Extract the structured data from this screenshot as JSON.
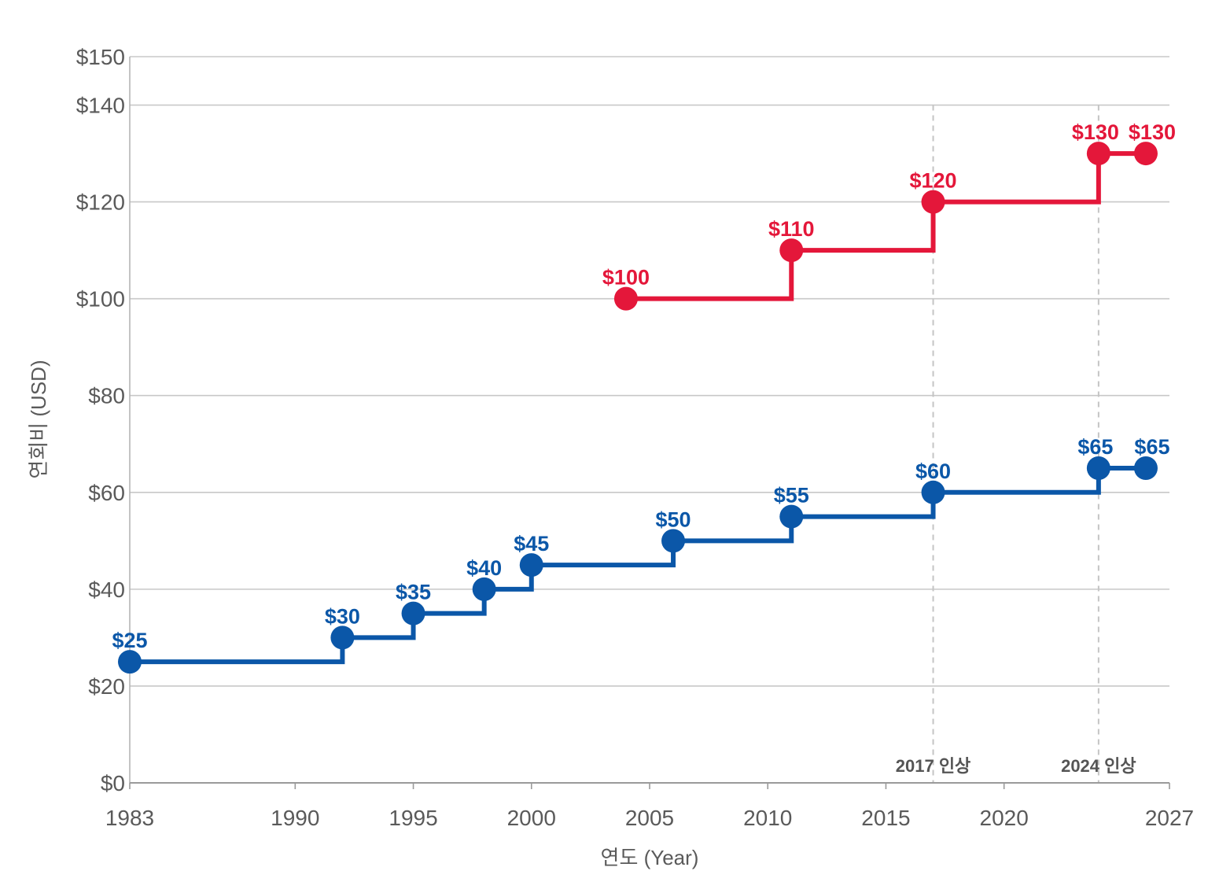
{
  "chart_data": {
    "type": "line",
    "step": true,
    "xlabel": "연도 (Year)",
    "ylabel": "연회비 (USD)",
    "xlim": [
      1983,
      2027
    ],
    "ylim": [
      0,
      150
    ],
    "x_ticks": [
      1983,
      1990,
      1995,
      2000,
      2005,
      2010,
      2015,
      2020,
      2027
    ],
    "y_ticks": [
      0,
      20,
      40,
      60,
      80,
      100,
      120,
      140,
      150
    ],
    "y_tick_labels": [
      "$0",
      "$20",
      "$40",
      "$60",
      "$80",
      "$100",
      "$120",
      "$140",
      "$150"
    ],
    "grid": true,
    "series": [
      {
        "color": "#0b57a8",
        "points": [
          {
            "x": 1983,
            "y": 25,
            "label": "$25"
          },
          {
            "x": 1992,
            "y": 30,
            "label": "$30"
          },
          {
            "x": 1995,
            "y": 35,
            "label": "$35"
          },
          {
            "x": 1998,
            "y": 40,
            "label": "$40"
          },
          {
            "x": 2000,
            "y": 45,
            "label": "$45"
          },
          {
            "x": 2006,
            "y": 50,
            "label": "$50"
          },
          {
            "x": 2011,
            "y": 55,
            "label": "$55"
          },
          {
            "x": 2017,
            "y": 60,
            "label": "$60"
          },
          {
            "x": 2024,
            "y": 65,
            "label": "$65"
          },
          {
            "x": 2026,
            "y": 65,
            "label": "$65"
          }
        ]
      },
      {
        "color": "#e4173a",
        "points": [
          {
            "x": 2004,
            "y": 100,
            "label": "$100"
          },
          {
            "x": 2011,
            "y": 110,
            "label": "$110"
          },
          {
            "x": 2017,
            "y": 120,
            "label": "$120"
          },
          {
            "x": 2024,
            "y": 130,
            "label": "$130"
          },
          {
            "x": 2026,
            "y": 130,
            "label": "$130"
          }
        ]
      }
    ],
    "annotations": [
      {
        "x": 2017,
        "text": "2017 인상"
      },
      {
        "x": 2024,
        "text": "2024 인상"
      }
    ]
  }
}
